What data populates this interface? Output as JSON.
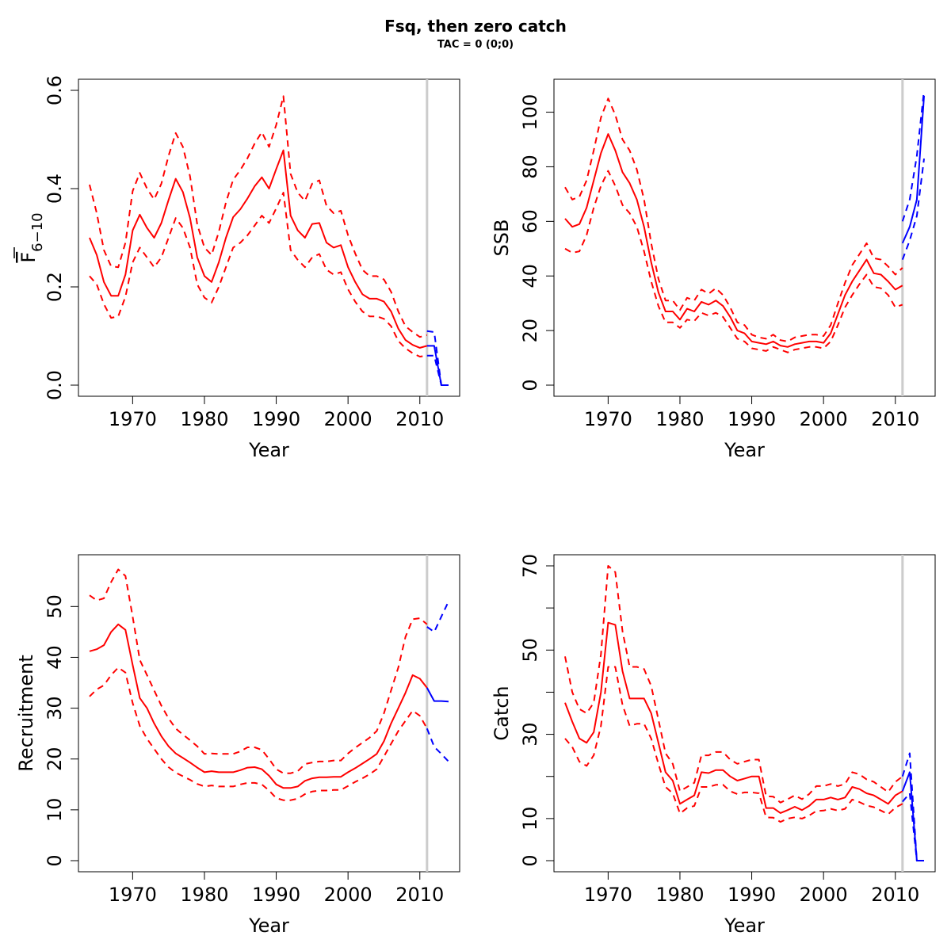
{
  "figure": {
    "title": "Fsq, then zero catch",
    "subtitle": "TAC = 0 (0;0)"
  },
  "colors": {
    "historic": "#ff0000",
    "projection": "#0000ff",
    "divider": "#cccccc"
  },
  "chart_data": [
    {
      "type": "line",
      "name": "fbar",
      "title": "",
      "xlabel": "Year",
      "ylabel_base": "F",
      "ylabel_sub": "6−10",
      "xlim": [
        1964,
        2014
      ],
      "ylim": [
        0,
        0.6
      ],
      "xticks": [
        1970,
        1980,
        1990,
        2000,
        2010
      ],
      "yticks": [
        0.0,
        0.2,
        0.4,
        0.6
      ],
      "ytick_labels": [
        "0.0",
        "0.2",
        "0.4",
        "0.6"
      ],
      "divider_x": 2011,
      "historic": {
        "x": [
          1964,
          1965,
          1966,
          1967,
          1968,
          1969,
          1970,
          1971,
          1972,
          1973,
          1974,
          1975,
          1976,
          1977,
          1978,
          1979,
          1980,
          1981,
          1982,
          1983,
          1984,
          1985,
          1986,
          1987,
          1988,
          1989,
          1990,
          1991,
          1992,
          1993,
          1994,
          1995,
          1996,
          1997,
          1998,
          1999,
          2000,
          2001,
          2002,
          2003,
          2004,
          2005,
          2006,
          2007,
          2008,
          2009,
          2010,
          2011
        ],
        "estimate": [
          0.3,
          0.265,
          0.21,
          0.182,
          0.182,
          0.225,
          0.315,
          0.347,
          0.32,
          0.3,
          0.33,
          0.377,
          0.42,
          0.393,
          0.34,
          0.26,
          0.222,
          0.21,
          0.25,
          0.3,
          0.342,
          0.358,
          0.38,
          0.405,
          0.423,
          0.4,
          0.44,
          0.478,
          0.345,
          0.315,
          0.3,
          0.328,
          0.33,
          0.29,
          0.28,
          0.285,
          0.24,
          0.21,
          0.185,
          0.176,
          0.176,
          0.17,
          0.15,
          0.115,
          0.092,
          0.082,
          0.076,
          0.08
        ],
        "lower": [
          0.222,
          0.205,
          0.165,
          0.137,
          0.14,
          0.18,
          0.25,
          0.28,
          0.26,
          0.24,
          0.26,
          0.3,
          0.34,
          0.32,
          0.28,
          0.205,
          0.178,
          0.168,
          0.2,
          0.24,
          0.28,
          0.29,
          0.305,
          0.325,
          0.345,
          0.33,
          0.36,
          0.392,
          0.275,
          0.255,
          0.24,
          0.26,
          0.267,
          0.235,
          0.225,
          0.23,
          0.195,
          0.17,
          0.15,
          0.14,
          0.14,
          0.135,
          0.12,
          0.09,
          0.075,
          0.065,
          0.058,
          0.06
        ],
        "upper": [
          0.408,
          0.35,
          0.275,
          0.242,
          0.24,
          0.29,
          0.395,
          0.432,
          0.4,
          0.378,
          0.41,
          0.467,
          0.513,
          0.485,
          0.425,
          0.327,
          0.28,
          0.265,
          0.312,
          0.372,
          0.418,
          0.438,
          0.462,
          0.492,
          0.515,
          0.485,
          0.53,
          0.588,
          0.43,
          0.392,
          0.375,
          0.41,
          0.417,
          0.365,
          0.35,
          0.355,
          0.305,
          0.268,
          0.235,
          0.222,
          0.222,
          0.215,
          0.19,
          0.15,
          0.12,
          0.108,
          0.098,
          0.102
        ]
      },
      "projection": {
        "x": [
          2011,
          2012,
          2013,
          2014
        ],
        "estimate": [
          0.08,
          0.08,
          0.0,
          0.0
        ],
        "lower": [
          0.06,
          0.06,
          0.0,
          0.0
        ],
        "upper": [
          0.11,
          0.108,
          0.0,
          0.0
        ]
      }
    },
    {
      "type": "line",
      "name": "ssb",
      "title": "",
      "xlabel": "Year",
      "ylabel": "SSB",
      "xlim": [
        1964,
        2014
      ],
      "ylim": [
        0,
        108
      ],
      "xticks": [
        1970,
        1980,
        1990,
        2000,
        2010
      ],
      "yticks": [
        0,
        20,
        40,
        60,
        80,
        100
      ],
      "ytick_labels": [
        "0",
        "20",
        "40",
        "60",
        "80",
        "100"
      ],
      "divider_x": 2011,
      "historic": {
        "x": [
          1964,
          1965,
          1966,
          1967,
          1968,
          1969,
          1970,
          1971,
          1972,
          1973,
          1974,
          1975,
          1976,
          1977,
          1978,
          1979,
          1980,
          1981,
          1982,
          1983,
          1984,
          1985,
          1986,
          1987,
          1988,
          1989,
          1990,
          1991,
          1992,
          1993,
          1994,
          1995,
          1996,
          1997,
          1998,
          1999,
          2000,
          2001,
          2002,
          2003,
          2004,
          2005,
          2006,
          2007,
          2008,
          2009,
          2010,
          2011
        ],
        "estimate": [
          61,
          58,
          59,
          65,
          75,
          85,
          92,
          86,
          78,
          74,
          68,
          58,
          45,
          34,
          27,
          27,
          24,
          28,
          27,
          30.5,
          29.5,
          31,
          29,
          25,
          20,
          19,
          16,
          15.5,
          15,
          16,
          14.5,
          14,
          15,
          15.5,
          16,
          16,
          15.5,
          19,
          26,
          33,
          38,
          42,
          46,
          41,
          40.5,
          38,
          35,
          36.5
        ],
        "lower": [
          50,
          48.5,
          49,
          55,
          65,
          73,
          78.5,
          73,
          66,
          63,
          58,
          49,
          38,
          29,
          23,
          23,
          21,
          24,
          23.5,
          26.5,
          25.5,
          26.5,
          25,
          21,
          17,
          16,
          13.5,
          13,
          12.5,
          14,
          13,
          12,
          13,
          13.5,
          14,
          14,
          13.5,
          16,
          22,
          28.5,
          33,
          37,
          40.5,
          36,
          35.5,
          33,
          28.5,
          29.5
        ],
        "upper": [
          72.5,
          68,
          69,
          75,
          86,
          98,
          105,
          99,
          90,
          86,
          79,
          68,
          52,
          39,
          31,
          31,
          27.5,
          32,
          31,
          35,
          33.5,
          35.5,
          33,
          28.5,
          23,
          22,
          18.5,
          17.5,
          17,
          18.5,
          16.5,
          16,
          17.5,
          18,
          18.5,
          18.5,
          18,
          22,
          30,
          37.5,
          44,
          48,
          52,
          46.5,
          46,
          43.5,
          40.5,
          43
        ]
      },
      "projection": {
        "x": [
          2011,
          2012,
          2013,
          2014
        ],
        "estimate": [
          52,
          58,
          68,
          106
        ],
        "lower": [
          46,
          53,
          62,
          83
        ],
        "upper": [
          60,
          68,
          84,
          108
        ]
      }
    },
    {
      "type": "line",
      "name": "recruitment",
      "title": "",
      "xlabel": "Year",
      "ylabel": "Recruitment",
      "xlim": [
        1964,
        2014
      ],
      "ylim": [
        0,
        58
      ],
      "xticks": [
        1970,
        1980,
        1990,
        2000,
        2010
      ],
      "yticks": [
        0,
        10,
        20,
        30,
        40,
        50
      ],
      "ytick_labels": [
        "0",
        "10",
        "20",
        "30",
        "40",
        "50"
      ],
      "divider_x": 2011,
      "historic": {
        "x": [
          1964,
          1965,
          1966,
          1967,
          1968,
          1969,
          1970,
          1971,
          1972,
          1973,
          1974,
          1975,
          1976,
          1977,
          1978,
          1979,
          1980,
          1981,
          1982,
          1983,
          1984,
          1985,
          1986,
          1987,
          1988,
          1989,
          1990,
          1991,
          1992,
          1993,
          1994,
          1995,
          1996,
          1997,
          1998,
          1999,
          2000,
          2001,
          2002,
          2003,
          2004,
          2005,
          2006,
          2007,
          2008,
          2009,
          2010,
          2011
        ],
        "estimate": [
          41.2,
          41.6,
          42.4,
          45,
          46.5,
          45.4,
          38.5,
          32,
          30,
          27,
          24.5,
          22.5,
          21.1,
          20.2,
          19.3,
          18.3,
          17.4,
          17.6,
          17.4,
          17.4,
          17.4,
          17.8,
          18.3,
          18.4,
          18,
          16.7,
          15,
          14.3,
          14.3,
          14.6,
          15.7,
          16.2,
          16.4,
          16.4,
          16.5,
          16.5,
          17.4,
          18.2,
          19.1,
          20,
          21,
          23.5,
          27,
          30,
          33,
          36.5,
          35.8,
          34
        ],
        "lower": [
          32.3,
          33.7,
          34.5,
          36.5,
          38,
          37,
          31,
          26.5,
          24,
          22,
          20,
          18.4,
          17.3,
          16.6,
          15.9,
          15.1,
          14.6,
          14.8,
          14.6,
          14.6,
          14.6,
          15,
          15.3,
          15.3,
          15,
          13.8,
          12.3,
          11.9,
          11.9,
          12.2,
          13.1,
          13.6,
          13.8,
          13.8,
          13.9,
          13.9,
          14.7,
          15.5,
          16.2,
          17,
          18,
          20.5,
          23,
          25.5,
          27.5,
          29.5,
          28.5,
          26
        ]
      },
      "historic_upper": [
        52.2,
        51.2,
        51.6,
        54.8,
        57.3,
        56,
        48,
        39.5,
        36.5,
        33.5,
        30.5,
        28,
        26,
        24.8,
        23.7,
        22.5,
        21,
        21.1,
        21,
        21,
        21,
        21.5,
        22.3,
        22.3,
        21.8,
        20,
        18,
        17.2,
        17.2,
        17.6,
        19,
        19.3,
        19.5,
        19.5,
        19.7,
        19.7,
        21.1,
        22.2,
        23.2,
        24.2,
        25.5,
        29,
        33.5,
        38,
        44,
        47.5,
        47.7,
        46.5
      ],
      "projection": {
        "x": [
          2011,
          2012,
          2013,
          2014
        ],
        "estimate": [
          34,
          31.4,
          31.4,
          31.3
        ],
        "lower": [
          26,
          22.4,
          21,
          19.5
        ],
        "upper": [
          46,
          45,
          48,
          51
        ]
      }
    },
    {
      "type": "line",
      "name": "catch",
      "title": "",
      "xlabel": "Year",
      "ylabel": "Catch",
      "xlim": [
        1964,
        2014
      ],
      "ylim": [
        0,
        70
      ],
      "xticks": [
        1970,
        1980,
        1990,
        2000,
        2010
      ],
      "yticks": [
        0,
        10,
        30,
        50,
        70
      ],
      "ytick_labels": [
        "0",
        "10",
        "30",
        "50",
        "70"
      ],
      "minor_yticks": [
        20,
        40,
        60
      ],
      "divider_x": 2011,
      "historic": {
        "x": [
          1964,
          1965,
          1966,
          1967,
          1968,
          1969,
          1970,
          1971,
          1972,
          1973,
          1974,
          1975,
          1976,
          1977,
          1978,
          1979,
          1980,
          1981,
          1982,
          1983,
          1984,
          1985,
          1986,
          1987,
          1988,
          1989,
          1990,
          1991,
          1992,
          1993,
          1994,
          1995,
          1996,
          1997,
          1998,
          1999,
          2000,
          2001,
          2002,
          2003,
          2004,
          2005,
          2006,
          2007,
          2008,
          2009,
          2010,
          2011
        ],
        "estimate": [
          37.5,
          33,
          29,
          28,
          30.5,
          40,
          56.5,
          56,
          45,
          38.5,
          38.5,
          38.5,
          35,
          28,
          21,
          19,
          13.5,
          14.5,
          15.5,
          21,
          20.8,
          21.5,
          21.5,
          20,
          19,
          19.5,
          20,
          20,
          12.5,
          12.5,
          11.3,
          12,
          12.8,
          12,
          13,
          14.5,
          14.5,
          15,
          14.5,
          15,
          17.5,
          17,
          16,
          15.5,
          14.5,
          13.5,
          15.5,
          16.5
        ],
        "lower": [
          29,
          27,
          23.5,
          22.5,
          25,
          32,
          46,
          46,
          37,
          32,
          32.5,
          32.5,
          29,
          23,
          17.5,
          16,
          11.2,
          12.5,
          13,
          17.5,
          17.5,
          18,
          18,
          16.5,
          15.8,
          16.2,
          16.2,
          16,
          10.3,
          10.2,
          9.2,
          10,
          10.3,
          10,
          10.7,
          11.8,
          11.9,
          12.3,
          11.9,
          12.3,
          14.5,
          13.9,
          13.1,
          12.7,
          11.9,
          11,
          12.6,
          13.5
        ],
        "upper": [
          48.5,
          40,
          36,
          35,
          37.5,
          49,
          70,
          68.5,
          54.5,
          46,
          46,
          45.5,
          41.5,
          33.5,
          25.5,
          23,
          16.5,
          17.5,
          18.5,
          25,
          25,
          25.8,
          25.8,
          24,
          23,
          23.5,
          24,
          24,
          15.3,
          15.2,
          13.8,
          14.6,
          15.5,
          14.6,
          15.8,
          17.7,
          17.7,
          18.2,
          17.7,
          18.2,
          21,
          20.5,
          19.3,
          18.7,
          17.5,
          16.3,
          18.7,
          20
        ]
      },
      "projection": {
        "x": [
          2011,
          2012,
          2013,
          2014
        ],
        "estimate": [
          16.5,
          21,
          0,
          0
        ],
        "lower": [
          14,
          16,
          0,
          0
        ],
        "upper": [
          20,
          25.5,
          0,
          0
        ]
      }
    }
  ]
}
